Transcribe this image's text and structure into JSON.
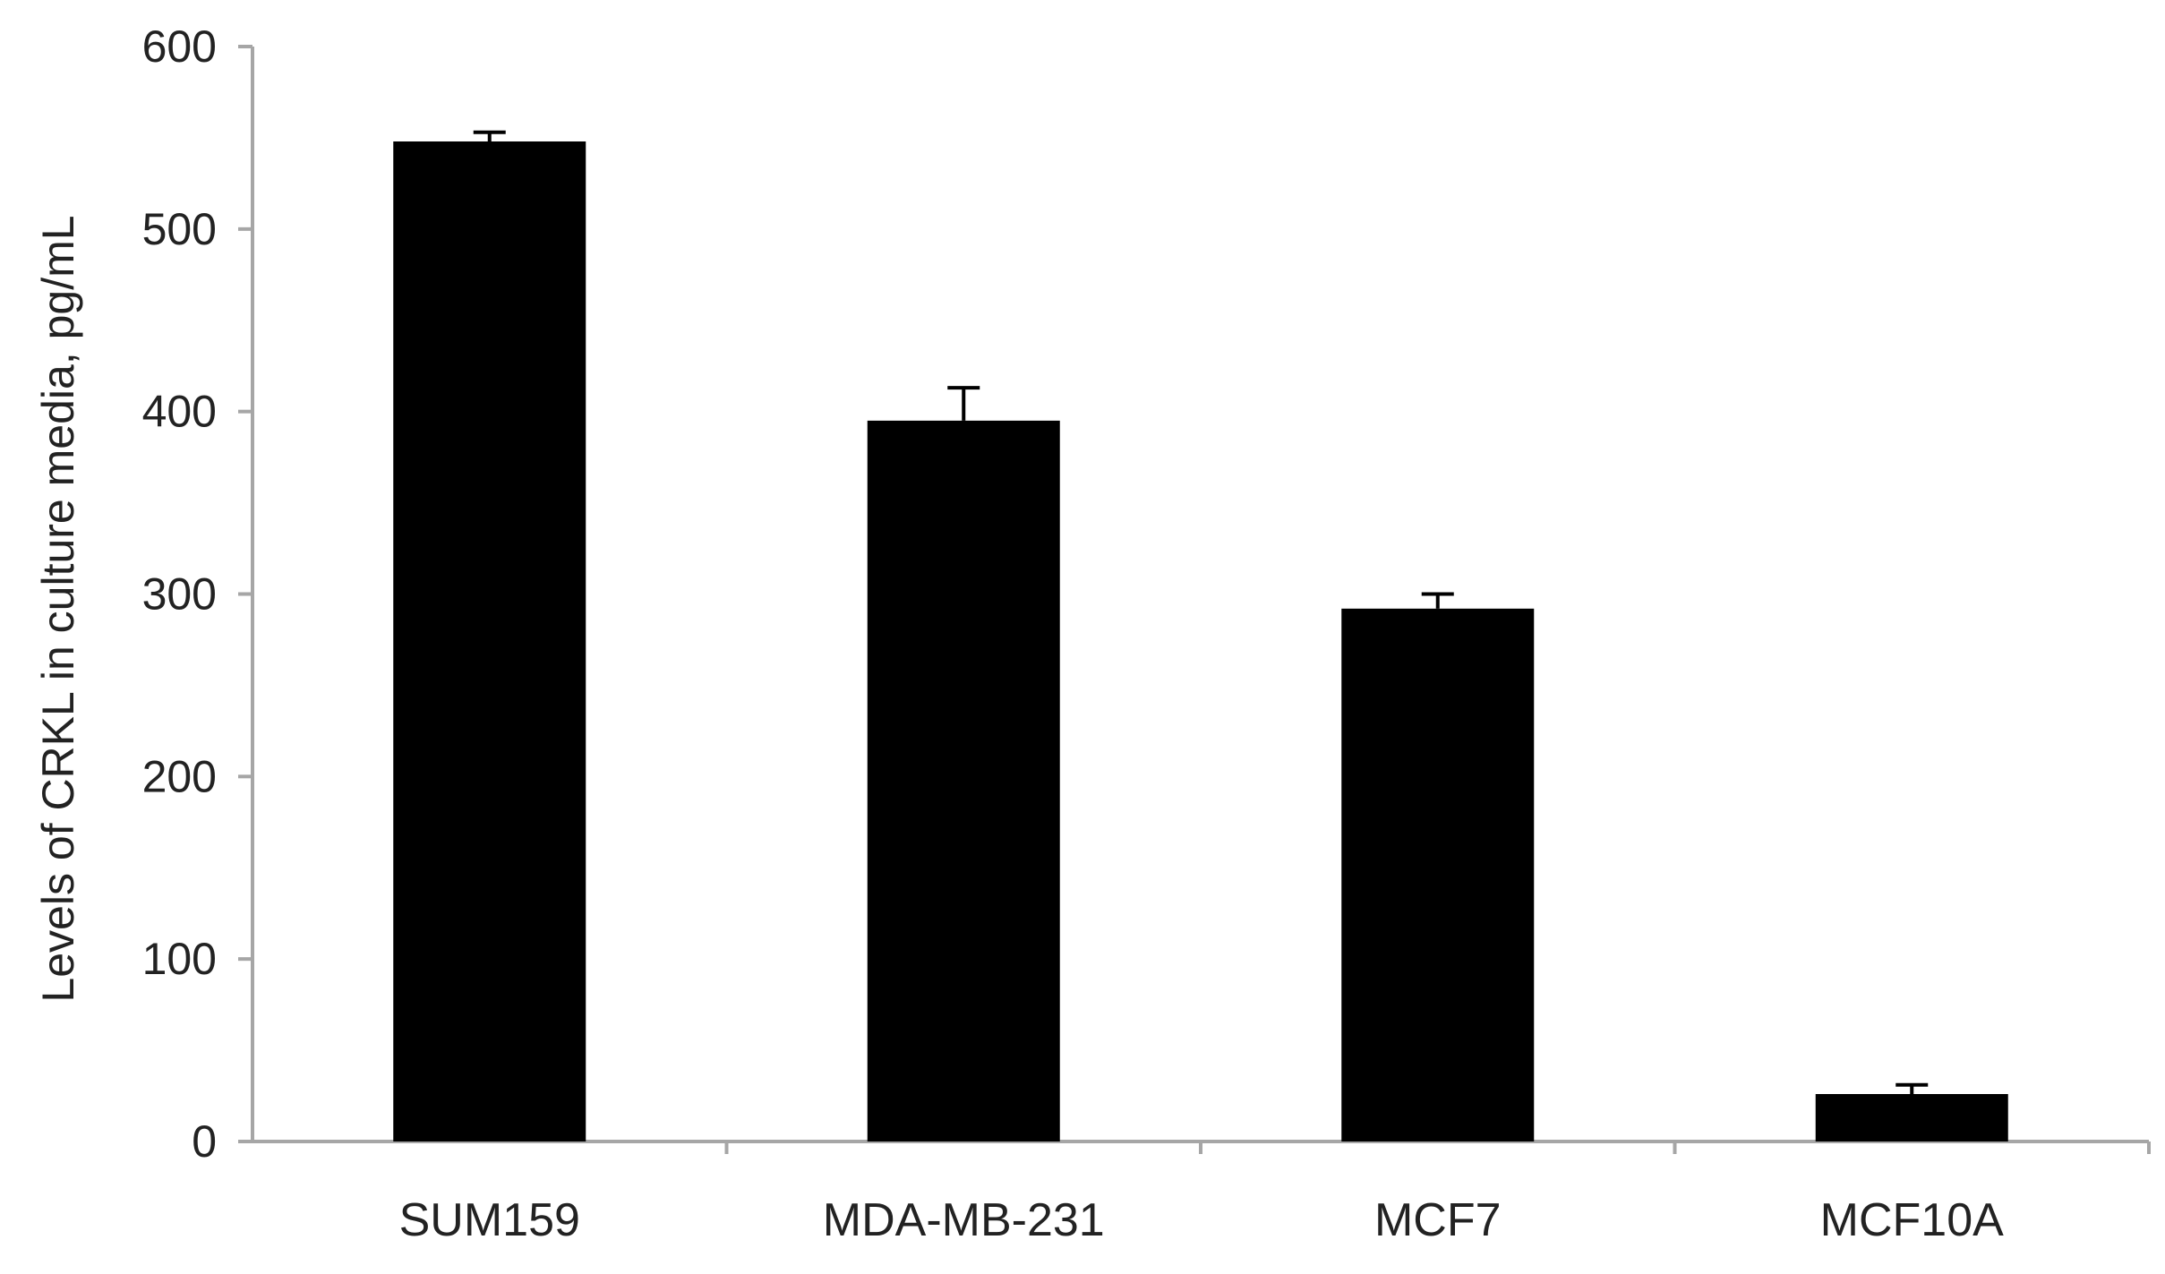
{
  "chart_data": {
    "type": "bar",
    "title": "",
    "xlabel": "",
    "ylabel": "Levels of CRKL in culture media, pg/mL",
    "categories": [
      "SUM159",
      "MDA-MB-231",
      "MCF7",
      "MCF10A"
    ],
    "values": [
      548,
      395,
      292,
      26
    ],
    "errors": [
      5,
      18,
      8,
      5
    ],
    "ylim": [
      0,
      600
    ],
    "yticks": [
      0,
      100,
      200,
      300,
      400,
      500,
      600
    ],
    "grid": false,
    "legend": "none",
    "colors": {
      "bar": "#000000",
      "axis": "#a6a6a6",
      "text": "#222222"
    }
  }
}
